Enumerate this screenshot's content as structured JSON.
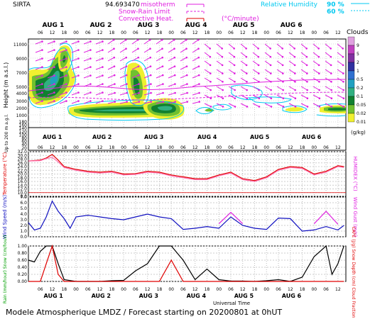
{
  "header": {
    "station": "SIRTA",
    "coords": "94.693470",
    "legend_left": [
      "misotherm",
      "Snow-Rain Limit",
      "Convective Heat.",
      "(°C/minute)"
    ],
    "legend_right": [
      "Relative Humidity",
      "90 %",
      "60 %"
    ]
  },
  "footer": {
    "title": "Modele Atmospherique LMDZ / Forecast starting on 20200801 at 0hUT",
    "xaxis_label": "Universal Time"
  },
  "colors": {
    "cyan": "#00c8f0",
    "magenta": "#e020e0",
    "red": "#e00000",
    "blue": "#1010c0",
    "grid": "#999999"
  },
  "chart_data": [
    {
      "type": "heatmap",
      "name": "clouds-and-wind",
      "x_days": [
        "AUG 1",
        "AUG 2",
        "AUG 3",
        "AUG 4",
        "AUG 5",
        "AUG 6"
      ],
      "x_hours": [
        "06",
        "12",
        "18",
        "00"
      ],
      "ylabel": "Height (m a.s.l.)",
      "ylabel_lower": "Up to 200 m a.g.l.",
      "yticks_upper": [
        11000,
        9000,
        7000,
        5000,
        4000,
        3000,
        2000,
        1000
      ],
      "yticks_lower": [
        180,
        160,
        140,
        120,
        100,
        80,
        60,
        40,
        20
      ],
      "colorbar": {
        "title": "Clouds",
        "unit": "(g/kg)",
        "levels": [
          "9",
          "5",
          "2",
          "1",
          "0.5",
          "0.2",
          "0.1",
          "0.05",
          "0.02",
          "0.01"
        ],
        "colors": [
          "#e0a0e0",
          "#c040c0",
          "#8030a0",
          "#3030a0",
          "#3070d0",
          "#20a0c0",
          "#30b080",
          "#108030",
          "#70c030",
          "#f0f030"
        ]
      }
    },
    {
      "type": "line",
      "name": "temperature",
      "ylabel": "Temperature (°C)",
      "ylabel_right": "HUMIDEX (°C)",
      "yticks": [
        "32.0",
        "30.0",
        "28.0",
        "26.0",
        "24.0",
        "22.0",
        "20.0",
        "18.0",
        "16.0",
        "14.0",
        "12.0",
        "10.0",
        "8.0"
      ],
      "ylim": [
        8,
        32
      ],
      "x_hours": [
        0,
        6,
        9,
        12,
        15,
        18,
        24,
        30,
        36,
        42,
        48,
        54,
        60,
        66,
        72,
        78,
        84,
        90,
        96,
        102,
        108,
        114,
        120,
        126,
        132,
        138,
        144,
        150,
        156,
        159
      ],
      "series": [
        {
          "values": [
            27,
            27.5,
            28.6,
            30.5,
            27.5,
            24,
            22.5,
            21.5,
            21,
            21.5,
            20,
            20.2,
            21.5,
            21,
            19.5,
            18.5,
            17.5,
            17.5,
            19.5,
            21,
            17.5,
            16.5,
            18.5,
            22.5,
            24,
            23.5,
            20,
            21.5,
            24.5,
            24
          ],
          "color": "#e00000"
        },
        {
          "values": [
            27,
            27.2,
            28.3,
            29,
            26.5,
            23.5,
            22,
            21,
            20.5,
            21,
            19.5,
            19.8,
            21,
            20.5,
            19,
            18,
            17,
            17,
            19,
            20.5,
            17,
            16,
            18,
            22,
            23.5,
            23,
            19.5,
            21,
            24,
            23.5
          ],
          "color": "#ff70b0"
        }
      ]
    },
    {
      "type": "line",
      "name": "wind",
      "ylabel": "Wind Speed (m/s)",
      "ylabel_right": "Wind Gust (m/s)",
      "yticks": [
        "7.0",
        "6.0",
        "5.0",
        "4.0",
        "3.0",
        "2.0",
        "1.0",
        "0.0"
      ],
      "ylim": [
        0,
        7
      ],
      "x_hours": [
        0,
        3,
        6,
        9,
        12,
        15,
        18,
        21,
        24,
        30,
        36,
        42,
        48,
        54,
        60,
        66,
        72,
        78,
        84,
        90,
        96,
        102,
        108,
        114,
        120,
        126,
        132,
        138,
        144,
        150,
        156,
        159
      ],
      "series": [
        {
          "name": "speed",
          "values": [
            2.5,
            1.2,
            1.5,
            3.5,
            6.3,
            4.5,
            3.2,
            1.5,
            3.5,
            3.8,
            3.5,
            3.2,
            3,
            3.5,
            4,
            3.5,
            3.2,
            1.3,
            1.5,
            1.8,
            1.5,
            3.5,
            2,
            1.5,
            1.3,
            3.3,
            3.2,
            1,
            1.2,
            1.8,
            1.2,
            2
          ],
          "color": "#1010c0"
        },
        {
          "name": "gust",
          "values": [
            null,
            null,
            null,
            null,
            null,
            null,
            null,
            null,
            null,
            null,
            null,
            null,
            null,
            null,
            null,
            null,
            null,
            null,
            null,
            null,
            2.3,
            4.3,
            2.3,
            null,
            null,
            null,
            null,
            null,
            2.3,
            4.5,
            2.2,
            null
          ],
          "color": "#e020e0"
        }
      ]
    },
    {
      "type": "line",
      "name": "precip-cloud",
      "ylabel": "Rain (mm/hour) Snow (cm/hour)",
      "ylabel_right": "CAPE (J/g) Snow Depth (cm) Cloud Fraction",
      "yticks": [
        "1.00",
        "0.80",
        "0.60",
        "0.40",
        "0.20",
        "0.00"
      ],
      "ylim": [
        0,
        1
      ],
      "x_hours": [
        0,
        3,
        6,
        9,
        12,
        15,
        18,
        24,
        30,
        36,
        42,
        48,
        54,
        60,
        66,
        72,
        78,
        84,
        90,
        96,
        102,
        108,
        114,
        120,
        126,
        132,
        138,
        144,
        150,
        153,
        156,
        159
      ],
      "series": [
        {
          "name": "cloud-fraction",
          "values": [
            0.6,
            0.55,
            0.85,
            1,
            1,
            0.5,
            0.05,
            0,
            0,
            0,
            0.02,
            0.03,
            0.3,
            0.5,
            1,
            1,
            0.6,
            0.05,
            0.35,
            0.05,
            0.01,
            0.01,
            0,
            0.02,
            0.05,
            0,
            0.12,
            0.7,
            1,
            0.2,
            0.5,
            1
          ],
          "color": "#000000"
        },
        {
          "name": "cape",
          "values": [
            0,
            0,
            0,
            0.5,
            1,
            0.2,
            0,
            0,
            0,
            0,
            0,
            0,
            0,
            0,
            0,
            0.6,
            0,
            0,
            0,
            0,
            0,
            0,
            0,
            0,
            0,
            0,
            0,
            0,
            0,
            0,
            0,
            0
          ],
          "color": "#e00000"
        }
      ]
    }
  ]
}
